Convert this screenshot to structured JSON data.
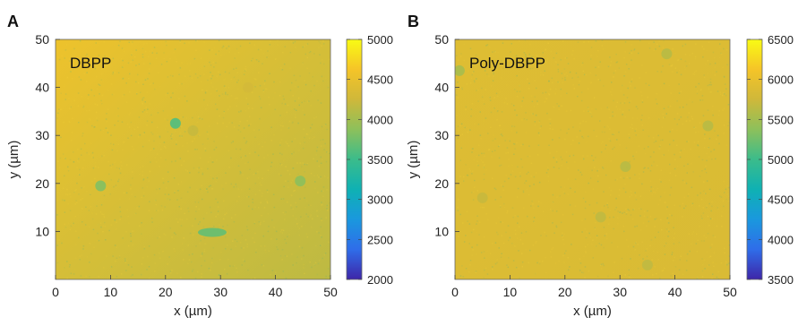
{
  "chart_data": [
    {
      "type": "heatmap",
      "panel_label": "A",
      "annotation": "DBPP",
      "xlabel": "x (µm)",
      "ylabel": "y (µm)",
      "xlim": [
        0,
        50
      ],
      "ylim": [
        0,
        50
      ],
      "xticks": [
        "0",
        "10",
        "20",
        "30",
        "40",
        "50"
      ],
      "yticks": [
        "10",
        "20",
        "30",
        "40",
        "50"
      ],
      "colorbar": {
        "min": 2000,
        "max": 5000,
        "ticks": [
          "2000",
          "2500",
          "3000",
          "3500",
          "4000",
          "4500",
          "5000"
        ]
      },
      "colormap": [
        "#3e26a8",
        "#2f6de9",
        "#1a98de",
        "#0fb1b3",
        "#3bbc8b",
        "#8dc05b",
        "#cfb83a",
        "#f5c428",
        "#f9fb14"
      ],
      "background": {
        "upper_left": 4550,
        "lower_right": 4150
      },
      "spots": [
        {
          "x": 21.8,
          "y": 32.5,
          "value": 3550
        },
        {
          "x": 8.2,
          "y": 19.5,
          "value": 3800
        },
        {
          "x": 44.5,
          "y": 20.5,
          "value": 3850
        },
        {
          "x": 28.5,
          "y": 9.8,
          "value": 3700
        },
        {
          "x": 25.0,
          "y": 31.0,
          "value": 4200
        },
        {
          "x": 35.0,
          "y": 40.0,
          "value": 4300
        }
      ]
    },
    {
      "type": "heatmap",
      "panel_label": "B",
      "annotation": "Poly-DBPP",
      "xlabel": "x (µm)",
      "ylabel": "y (µm)",
      "xlim": [
        0,
        50
      ],
      "ylim": [
        0,
        50
      ],
      "xticks": [
        "0",
        "10",
        "20",
        "30",
        "40",
        "50"
      ],
      "yticks": [
        "10",
        "20",
        "30",
        "40",
        "50"
      ],
      "colorbar": {
        "min": 3500,
        "max": 6500,
        "ticks": [
          "3500",
          "4000",
          "4500",
          "5000",
          "5500",
          "6000",
          "6500"
        ]
      },
      "colormap": [
        "#3e26a8",
        "#2f6de9",
        "#1a98de",
        "#0fb1b3",
        "#3bbc8b",
        "#8dc05b",
        "#cfb83a",
        "#f5c428",
        "#f9fb14"
      ],
      "background": {
        "upper_left": 5900,
        "lower_right": 5850
      },
      "spots": [
        {
          "x": 0.8,
          "y": 43.5,
          "value": 5500
        },
        {
          "x": 38.5,
          "y": 47.0,
          "value": 5600
        },
        {
          "x": 46.0,
          "y": 32.0,
          "value": 5600
        },
        {
          "x": 31.0,
          "y": 23.5,
          "value": 5600
        },
        {
          "x": 26.5,
          "y": 13.0,
          "value": 5650
        },
        {
          "x": 35.0,
          "y": 3.0,
          "value": 5650
        },
        {
          "x": 5.0,
          "y": 17.0,
          "value": 5700
        }
      ]
    }
  ]
}
